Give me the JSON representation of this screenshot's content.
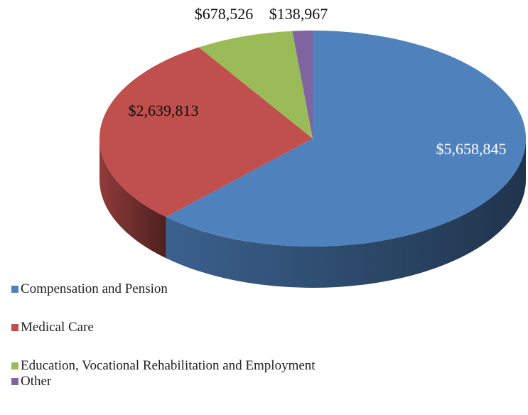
{
  "chart_data": {
    "type": "pie",
    "categories": [
      "Compensation and Pension",
      "Medical Care",
      "Education, Vocational Rehabilitation and Employment",
      "Other"
    ],
    "values": [
      5658845,
      2639813,
      678526,
      138967
    ],
    "value_labels": [
      "$5,658,845",
      "$2,639,813",
      "$678,526",
      "$138,967"
    ],
    "colors": [
      "#4f81bd",
      "#c0504d",
      "#9bbb59",
      "#8064a2"
    ]
  }
}
